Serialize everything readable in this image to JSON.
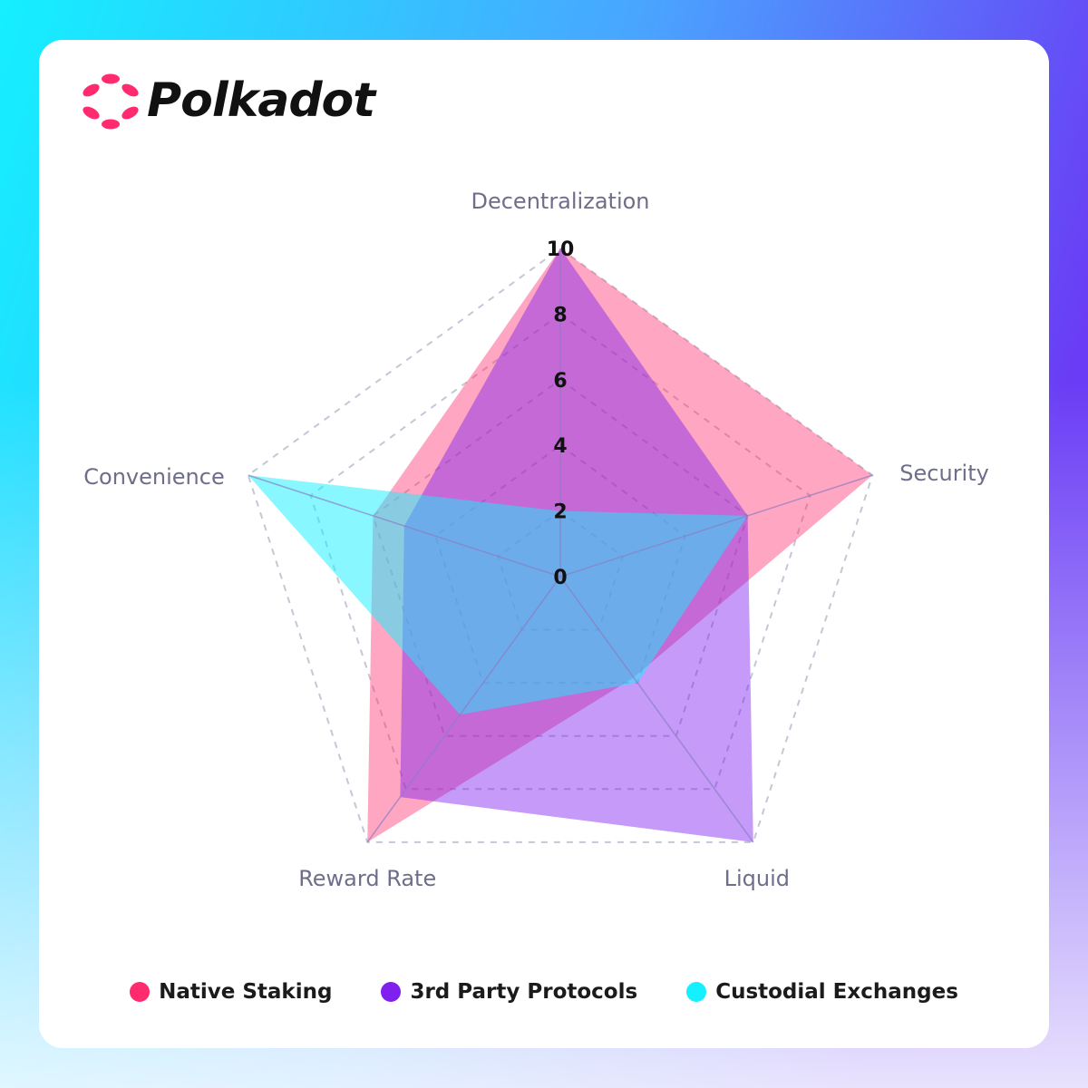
{
  "brand": {
    "name": "Polkadot",
    "color": "#e6007a"
  },
  "colors": {
    "native": "#ff2b6e",
    "third_party": "#7f1ff0",
    "custodial": "#14f0ff",
    "axis_text": "#6e6e8a",
    "grid": "#c3c8d6"
  },
  "chart_data": {
    "type": "radar",
    "title": "",
    "axes": [
      "Decentralization",
      "Security",
      "Liquid",
      "Reward Rate",
      "Convenience"
    ],
    "scale": {
      "min": 0,
      "max": 10,
      "ticks": [
        "0",
        "2",
        "4",
        "6",
        "8",
        "10"
      ]
    },
    "grid": true,
    "legend_position": "bottom",
    "series": [
      {
        "name": "Native Staking",
        "values": [
          10,
          10,
          3.8,
          10,
          6
        ],
        "color": "#ff2b6e"
      },
      {
        "name": "3rd Party Protocols",
        "values": [
          10,
          6,
          10,
          8.3,
          5
        ],
        "color": "#7f1ff0"
      },
      {
        "name": "Custodial Exchanges",
        "values": [
          2,
          6,
          4,
          5.2,
          10
        ],
        "color": "#14f0ff"
      }
    ]
  }
}
